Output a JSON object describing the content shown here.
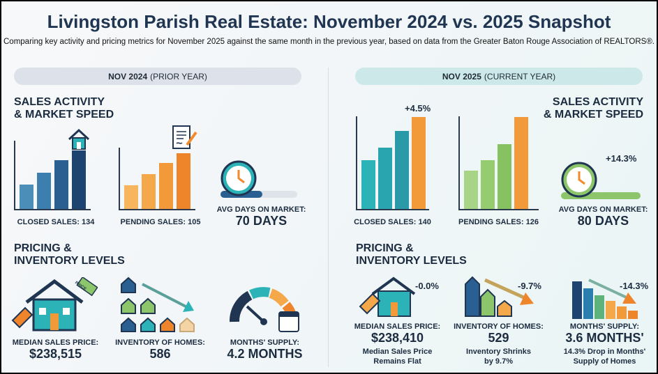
{
  "header": {
    "title": "Livingston Parish Real Estate: November 2024 vs. 2025 Snapshot",
    "subtitle": "Comparing key activity and pricing metrics for November 2025 against the same month in the previous year, based on data from the Greater Baton Rouge Association of REALTORS®."
  },
  "prior": {
    "pill_bold": "NOV 2024",
    "pill_rest": "(PRIOR YEAR)",
    "sales_heading_1": "SALES ACTIVITY",
    "sales_heading_2": "& MARKET SPEED",
    "closed_sales": "CLOSED SALES: 134",
    "pending_sales": "PENDING SALES: 105",
    "dom_label": "AVG DAYS ON MARKET:",
    "dom_value": "70 DAYS",
    "pricing_heading_1": "PRICING &",
    "pricing_heading_2": "INVENTORY LEVELS",
    "price_tag_text": "PRICE",
    "median_label": "MEDIAN SALES PRICE:",
    "median_value": "$238,515",
    "inventory_label": "INVENTORY OF HOMES:",
    "inventory_value": "586",
    "supply_label": "MONTHS' SUPPLY:",
    "supply_value": "4.2 MONTHS"
  },
  "current": {
    "pill_bold": "NOV 2025",
    "pill_rest": "(CURRENT YEAR)",
    "sales_heading_1": "SALES ACTIVITY",
    "sales_heading_2": "& MARKET SPEED",
    "closed_change": "+4.5%",
    "closed_sales": "CLOSED SALES: 140",
    "pending_sales": "PENDING SALES: 126",
    "dom_change": "+14.3%",
    "dom_label": "AVG DAYS ON MARKET:",
    "dom_value": "80 DAYS",
    "pricing_heading_1": "PRICING &",
    "pricing_heading_2": "INVENTORY LEVELS",
    "median_change": "-0.0%",
    "median_label": "MEDIAN SALES PRICE:",
    "median_value": "$238,410",
    "median_note_1": "Median Sales Price",
    "median_note_2": "Remains Flat",
    "inventory_change": "-9.7%",
    "inventory_label": "INVENTORY OF HOMES:",
    "inventory_value": "529",
    "inventory_note_1": "Inventory Shrinks",
    "inventory_note_2": "by 9.7%",
    "supply_change": "-14.3%",
    "supply_label": "MONTHS' SUPPLY:",
    "supply_value": "3.6 MONTHS'",
    "supply_note_1": "14.3% Drop in Months'",
    "supply_note_2": "Supply of Homes"
  },
  "colors": {
    "navy": "#1f3552",
    "teal": "#2bb3b8",
    "orange": "#f08a2c",
    "green": "#8cc56a"
  }
}
